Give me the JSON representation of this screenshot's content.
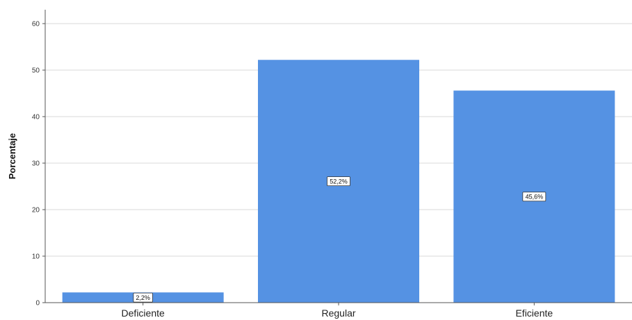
{
  "chart_data": {
    "type": "bar",
    "categories": [
      "Deficiente",
      "Regular",
      "Eficiente"
    ],
    "values": [
      2.2,
      52.2,
      45.6
    ],
    "data_labels": [
      "2,2%",
      "52,2%",
      "45,6%"
    ],
    "title": "",
    "xlabel": "",
    "ylabel": "Porcentaje",
    "ylim": [
      0,
      60
    ],
    "yticks": [
      0,
      10,
      20,
      30,
      40,
      50,
      60
    ],
    "grid": true,
    "legend": "none",
    "bar_color": "#5592e3",
    "grid_color": "#d9d9d9"
  }
}
